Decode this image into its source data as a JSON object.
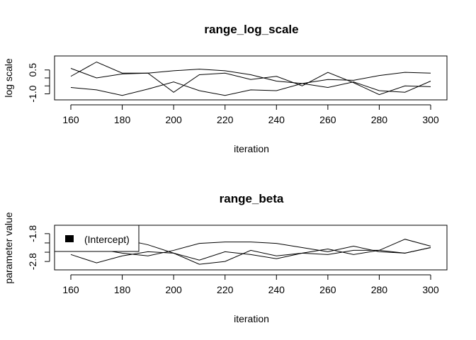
{
  "chart_data": [
    {
      "type": "line",
      "title": "range_log_scale",
      "xlabel": "iteration",
      "ylabel": "log scale",
      "xlim": [
        160,
        300
      ],
      "ylim": [
        -1.2,
        1.2
      ],
      "x_ticks": [
        160,
        180,
        200,
        220,
        240,
        260,
        280,
        300
      ],
      "y_ticks": [
        -1.0,
        0.5
      ],
      "y_tick_labels": [
        "-1.0",
        "0.5"
      ],
      "x": [
        160,
        170,
        180,
        190,
        200,
        210,
        220,
        230,
        240,
        250,
        260,
        270,
        280,
        290,
        300
      ],
      "series": [
        {
          "values": [
            0.6,
            0.0,
            0.25,
            0.3,
            -0.9,
            0.2,
            0.3,
            -0.1,
            0.1,
            -0.5,
            0.35,
            -0.3,
            -1.05,
            -0.5,
            -0.55
          ]
        },
        {
          "values": [
            0.1,
            1.0,
            0.3,
            0.3,
            0.45,
            0.55,
            0.45,
            0.2,
            -0.2,
            -0.35,
            -0.1,
            -0.15,
            0.15,
            0.35,
            0.3
          ]
        },
        {
          "values": [
            -0.6,
            -0.75,
            -1.1,
            -0.7,
            -0.25,
            -0.8,
            -1.1,
            -0.75,
            -0.8,
            -0.35,
            -0.6,
            -0.25,
            -0.8,
            -0.9,
            -0.2
          ]
        }
      ]
    },
    {
      "type": "line",
      "title": "range_beta",
      "xlabel": "iteration",
      "ylabel": "parameter value",
      "xlim": [
        160,
        300
      ],
      "ylim": [
        -3.0,
        -1.6
      ],
      "x_ticks": [
        160,
        180,
        200,
        220,
        240,
        260,
        280,
        300
      ],
      "y_ticks": [
        -2.8,
        -1.8
      ],
      "y_tick_labels": [
        "-2.8",
        "-1.8"
      ],
      "legend": {
        "position": "top-left",
        "entries": [
          "(Intercept)"
        ]
      },
      "x": [
        160,
        170,
        180,
        190,
        200,
        210,
        220,
        230,
        240,
        250,
        260,
        270,
        280,
        290,
        300
      ],
      "series": [
        {
          "values": [
            -2.2,
            -2.3,
            -2.0,
            -2.2,
            -2.5,
            -2.9,
            -2.8,
            -2.4,
            -2.6,
            -2.5,
            -2.35,
            -2.55,
            -2.4,
            -2.5,
            -2.3
          ]
        },
        {
          "values": [
            -2.3,
            -2.35,
            -2.5,
            -2.6,
            -2.4,
            -2.15,
            -2.1,
            -2.1,
            -2.15,
            -2.3,
            -2.45,
            -2.25,
            -2.45,
            -2.5,
            -2.3
          ]
        },
        {
          "values": [
            -2.55,
            -2.85,
            -2.6,
            -2.45,
            -2.5,
            -2.75,
            -2.45,
            -2.55,
            -2.7,
            -2.5,
            -2.55,
            -2.4,
            -2.4,
            -2.0,
            -2.25
          ]
        }
      ]
    }
  ]
}
